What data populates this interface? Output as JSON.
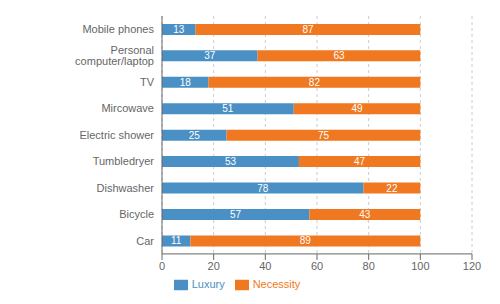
{
  "chart_data": {
    "type": "bar",
    "orientation": "horizontal",
    "stacked": true,
    "categories": [
      "Mobile phones",
      "Personal computer/laptop",
      "TV",
      "Mircowave",
      "Electric shower",
      "Tumbledryer",
      "Dishwasher",
      "Bicycle",
      "Car"
    ],
    "series": [
      {
        "name": "Luxury",
        "color": "#4A90C4",
        "values": [
          13,
          37,
          18,
          51,
          25,
          53,
          78,
          57,
          11
        ]
      },
      {
        "name": "Necessity",
        "color": "#F07820",
        "values": [
          87,
          63,
          82,
          49,
          75,
          47,
          22,
          43,
          89
        ]
      }
    ],
    "xlim": [
      0,
      120
    ],
    "xticks": [
      0,
      20,
      40,
      60,
      80,
      100,
      120
    ],
    "grid": true,
    "legend": "bottom",
    "data_labels": true
  }
}
